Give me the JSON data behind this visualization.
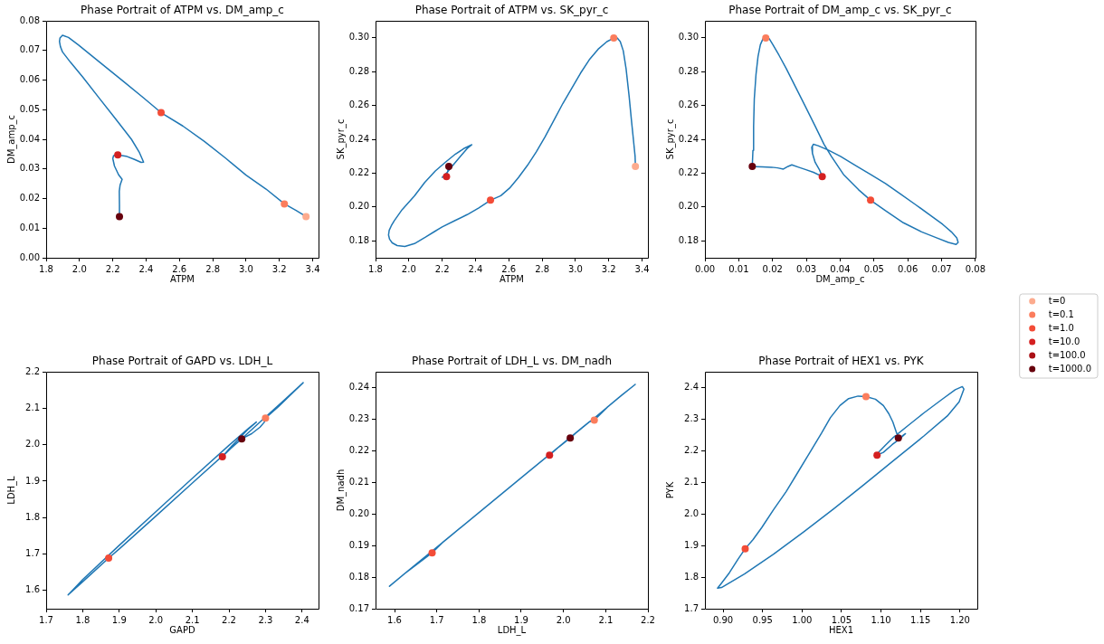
{
  "chart_data": [
    {
      "type": "line",
      "title": "Phase Portrait of ATPM vs. DM_amp_c",
      "xlabel": "ATPM",
      "ylabel": "DM_amp_c",
      "xlim": [
        1.8,
        3.435
      ],
      "ylim": [
        0,
        0.08
      ],
      "xticks": [
        1.8,
        {
          "value": 2,
          "label": "2.0"
        },
        2.2,
        2.4,
        2.6,
        2.8,
        {
          "value": 3,
          "label": "3.0"
        },
        3.2,
        3.4
      ],
      "yticks": [
        {
          "value": 0,
          "label": "0.00"
        },
        0.01,
        0.02,
        0.03,
        0.04,
        0.05,
        0.06,
        0.07,
        0.08
      ],
      "series": [
        {
          "color": "#1f77b4",
          "x": [
            3.36,
            3.3,
            3.23,
            3.12,
            3.0,
            2.88,
            2.75,
            2.62,
            2.49,
            2.38,
            2.263,
            2.117,
            1.995,
            1.934,
            1.898,
            1.883,
            1.88,
            1.886,
            1.898,
            1.946,
            2.02,
            2.117,
            2.215,
            2.312,
            2.36,
            2.385,
            2.37,
            2.33,
            2.28,
            2.23,
            2.205,
            2.2,
            2.21,
            2.235,
            2.256,
            2.244,
            2.239,
            2.24,
            2.24
          ],
          "values": [
            0.0139,
            0.016,
            0.0182,
            0.0232,
            0.0279,
            0.0335,
            0.0393,
            0.0445,
            0.049,
            0.0542,
            0.0596,
            0.0662,
            0.0718,
            0.0744,
            0.0751,
            0.0742,
            0.073,
            0.0712,
            0.0695,
            0.066,
            0.061,
            0.054,
            0.047,
            0.04,
            0.0355,
            0.0323,
            0.0322,
            0.0332,
            0.0343,
            0.0347,
            0.0345,
            0.0335,
            0.031,
            0.028,
            0.0265,
            0.0246,
            0.0225,
            0.018,
            0.0139
          ]
        },
        {
          "type": "scatter",
          "color": "#fcab8e",
          "marker": "circle",
          "x": [
            3.36
          ],
          "values": [
            0.0139
          ]
        },
        {
          "type": "scatter",
          "color": "#fb7d5d",
          "marker": "circle",
          "x": [
            3.23
          ],
          "values": [
            0.0182
          ]
        },
        {
          "type": "scatter",
          "color": "#f34c37",
          "marker": "circle",
          "x": [
            2.49
          ],
          "values": [
            0.049
          ]
        },
        {
          "type": "scatter",
          "color": "#d42021",
          "marker": "circle",
          "x": [
            2.23
          ],
          "values": [
            0.0347
          ]
        },
        {
          "type": "scatter",
          "color": "#67000d",
          "marker": "circle",
          "x": [
            2.24
          ],
          "values": [
            0.0139
          ]
        }
      ]
    },
    {
      "type": "line",
      "title": "Phase Portrait of ATPM vs. SK_pyr_c",
      "xlabel": "ATPM",
      "ylabel": "SK_pyr_c",
      "xlim": [
        1.8,
        3.435
      ],
      "ylim": [
        0.17,
        0.31
      ],
      "xticks": [
        1.8,
        {
          "value": 2,
          "label": "2.0"
        },
        2.2,
        2.4,
        2.6,
        2.8,
        {
          "value": 3,
          "label": "3.0"
        },
        3.2,
        3.4
      ],
      "yticks": [
        0.18,
        {
          "value": 0.2,
          "label": "0.20"
        },
        0.22,
        0.24,
        0.26,
        0.28,
        {
          "value": 0.3,
          "label": "0.30"
        }
      ],
      "series": [
        {
          "color": "#1f77b4",
          "x": [
            3.36,
            3.358,
            3.349,
            3.336,
            3.322,
            3.304,
            3.287,
            3.269,
            3.251,
            3.23,
            3.189,
            3.136,
            3.083,
            3.03,
            2.977,
            2.924,
            2.871,
            2.818,
            2.765,
            2.712,
            2.658,
            2.605,
            2.552,
            2.49,
            2.42,
            2.35,
            2.275,
            2.2,
            2.154,
            2.1,
            2.034,
            1.976,
            1.93,
            1.9,
            1.884,
            1.878,
            1.882,
            1.895,
            1.913,
            1.96,
            2.034,
            2.095,
            2.159,
            2.22,
            2.28,
            2.335,
            2.378,
            2.35,
            2.31,
            2.27,
            2.235,
            2.21,
            2.2,
            2.226,
            2.24
          ],
          "values": [
            0.224,
            0.2299,
            0.2388,
            0.2513,
            0.2656,
            0.2816,
            0.2923,
            0.2977,
            0.2998,
            0.2998,
            0.2977,
            0.2932,
            0.287,
            0.279,
            0.27,
            0.2611,
            0.2513,
            0.2415,
            0.2326,
            0.2246,
            0.2174,
            0.2112,
            0.2067,
            0.204,
            0.1995,
            0.1955,
            0.1919,
            0.1882,
            0.1855,
            0.1822,
            0.1784,
            0.1767,
            0.1772,
            0.1788,
            0.181,
            0.1835,
            0.1862,
            0.189,
            0.192,
            0.1985,
            0.2066,
            0.2145,
            0.2213,
            0.2265,
            0.2313,
            0.2348,
            0.2368,
            0.2345,
            0.23,
            0.2253,
            0.221,
            0.2183,
            0.2175,
            0.218,
            0.224
          ]
        },
        {
          "type": "scatter",
          "color": "#fcab8e",
          "marker": "circle",
          "x": [
            3.36
          ],
          "values": [
            0.224
          ]
        },
        {
          "type": "scatter",
          "color": "#fb7d5d",
          "marker": "circle",
          "x": [
            3.23
          ],
          "values": [
            0.2998
          ]
        },
        {
          "type": "scatter",
          "color": "#f34c37",
          "marker": "circle",
          "x": [
            2.49
          ],
          "values": [
            0.204
          ]
        },
        {
          "type": "scatter",
          "color": "#d42021",
          "marker": "circle",
          "x": [
            2.226
          ],
          "values": [
            0.218
          ]
        },
        {
          "type": "scatter",
          "color": "#67000d",
          "marker": "circle",
          "x": [
            2.24
          ],
          "values": [
            0.224
          ]
        }
      ]
    },
    {
      "type": "line",
      "title": "Phase Portrait of DM_amp_c vs. SK_pyr_c",
      "xlabel": "DM_amp_c",
      "ylabel": "SK_pyr_c",
      "xlim": [
        0,
        0.08
      ],
      "ylim": [
        0.17,
        0.31
      ],
      "xticks": [
        {
          "value": 0,
          "label": "0.00"
        },
        0.01,
        0.02,
        0.03,
        0.04,
        0.05,
        0.06,
        0.07,
        0.08
      ],
      "yticks": [
        0.18,
        {
          "value": 0.2,
          "label": "0.20"
        },
        0.22,
        0.24,
        0.26,
        0.28,
        {
          "value": 0.3,
          "label": "0.30"
        }
      ],
      "series": [
        {
          "color": "#1f77b4",
          "x": [
            0.014,
            0.0142,
            0.0144,
            0.0146,
            0.0151,
            0.0157,
            0.0164,
            0.0172,
            0.018,
            0.019,
            0.0201,
            0.0219,
            0.0241,
            0.0268,
            0.0295,
            0.0326,
            0.0352,
            0.0374,
            0.041,
            0.0454,
            0.049,
            0.0534,
            0.0587,
            0.0641,
            0.0685,
            0.072,
            0.0743,
            0.0749,
            0.0745,
            0.0729,
            0.0703,
            0.0667,
            0.0623,
            0.0579,
            0.0534,
            0.049,
            0.0445,
            0.0401,
            0.0366,
            0.0335,
            0.0321,
            0.0316,
            0.0318,
            0.0326,
            0.0339,
            0.0347,
            0.0321,
            0.0295,
            0.0277,
            0.0257,
            0.0246,
            0.0232,
            0.0215,
            0.0197,
            0.017,
            0.0148
          ],
          "values": [
            0.224,
            0.2335,
            0.2478,
            0.2638,
            0.2781,
            0.2888,
            0.2959,
            0.2995,
            0.2998,
            0.2995,
            0.2959,
            0.2897,
            0.2816,
            0.2709,
            0.2602,
            0.2478,
            0.2371,
            0.2299,
            0.2192,
            0.2103,
            0.204,
            0.1978,
            0.1907,
            0.1853,
            0.1818,
            0.1791,
            0.1779,
            0.1791,
            0.1818,
            0.1853,
            0.1898,
            0.1951,
            0.2014,
            0.2076,
            0.2139,
            0.2192,
            0.2246,
            0.2299,
            0.2335,
            0.2362,
            0.2371,
            0.2353,
            0.2317,
            0.2264,
            0.2219,
            0.218,
            0.2205,
            0.2223,
            0.2235,
            0.2249,
            0.224,
            0.2224,
            0.2231,
            0.2235,
            0.2237,
            0.2238
          ]
        },
        {
          "type": "scatter",
          "color": "#fb7d5d",
          "marker": "circle",
          "x": [
            0.018
          ],
          "values": [
            0.2998
          ]
        },
        {
          "type": "scatter",
          "color": "#f34c37",
          "marker": "circle",
          "x": [
            0.049
          ],
          "values": [
            0.204
          ]
        },
        {
          "type": "scatter",
          "color": "#d42021",
          "marker": "circle",
          "x": [
            0.0347
          ],
          "values": [
            0.218
          ]
        },
        {
          "type": "scatter",
          "color": "#67000d",
          "marker": "circle",
          "x": [
            0.014
          ],
          "values": [
            0.224
          ]
        }
      ]
    },
    {
      "type": "line",
      "title": "Phase Portrait of GAPD vs. LDH_L",
      "xlabel": "GAPD",
      "ylabel": "LDH_L",
      "xlim": [
        1.7,
        2.445
      ],
      "ylim": [
        1.55,
        2.2
      ],
      "xticks": [
        1.7,
        1.8,
        1.9,
        {
          "value": 2,
          "label": "2.0"
        },
        2.1,
        2.2,
        2.3,
        2.4
      ],
      "yticks": [
        1.6,
        1.7,
        1.8,
        1.9,
        {
          "value": 2,
          "label": "2.0"
        },
        2.1,
        2.2
      ],
      "series": [
        {
          "color": "#1f77b4",
          "x": [
            2.235,
            2.262,
            2.285,
            2.297,
            2.3,
            2.335,
            2.37,
            2.403,
            2.35,
            2.3,
            2.25,
            2.2,
            2.1,
            2.0,
            1.9,
            1.871,
            1.8,
            1.76,
            1.8,
            1.9,
            2.0,
            2.1,
            2.2,
            2.255,
            2.275,
            2.25,
            2.2,
            2.182,
            2.205,
            2.225
          ],
          "values": [
            2.016,
            2.03,
            2.048,
            2.062,
            2.073,
            2.104,
            2.138,
            2.17,
            2.121,
            2.076,
            2.03,
            1.985,
            1.895,
            1.804,
            1.714,
            1.689,
            1.624,
            1.588,
            1.63,
            1.724,
            1.816,
            1.908,
            1.998,
            2.046,
            2.062,
            2.04,
            1.988,
            1.967,
            1.99,
            2.007
          ]
        },
        {
          "type": "scatter",
          "color": "#fb7d5d",
          "marker": "circle",
          "x": [
            2.3
          ],
          "values": [
            2.073
          ]
        },
        {
          "type": "scatter",
          "color": "#f34c37",
          "marker": "circle",
          "x": [
            1.871
          ],
          "values": [
            1.689
          ]
        },
        {
          "type": "scatter",
          "color": "#d42021",
          "marker": "circle",
          "x": [
            2.182
          ],
          "values": [
            1.967
          ]
        },
        {
          "type": "scatter",
          "color": "#67000d",
          "marker": "circle",
          "x": [
            2.235
          ],
          "values": [
            2.016
          ]
        }
      ]
    },
    {
      "type": "line",
      "title": "Phase Portrait of LDH_L vs. DM_nadh",
      "xlabel": "LDH_L",
      "ylabel": "DM_nadh",
      "xlim": [
        1.555,
        2.2
      ],
      "ylim": [
        0.17,
        0.245
      ],
      "xticks": [
        1.6,
        1.7,
        1.8,
        1.9,
        {
          "value": 2,
          "label": "2.0"
        },
        2.1,
        2.2
      ],
      "yticks": [
        0.17,
        0.18,
        0.19,
        {
          "value": 0.2,
          "label": "0.20"
        },
        0.21,
        0.22,
        0.23,
        0.24
      ],
      "series": [
        {
          "color": "#1f77b4",
          "x": [
            2.016,
            2.03,
            2.048,
            2.062,
            2.073,
            2.104,
            2.138,
            2.17,
            2.121,
            2.076,
            2.03,
            1.985,
            1.895,
            1.804,
            1.714,
            1.689,
            1.624,
            1.588,
            1.63,
            1.724,
            1.816,
            1.908,
            1.998,
            2.046,
            2.062,
            2.04,
            1.988,
            1.967,
            1.99,
            2.008
          ],
          "values": [
            0.224,
            0.2257,
            0.2277,
            0.2292,
            0.2297,
            0.2338,
            0.2376,
            0.241,
            0.2357,
            0.2307,
            0.2257,
            0.2208,
            0.2109,
            0.2009,
            0.191,
            0.1877,
            0.1811,
            0.1771,
            0.1818,
            0.1921,
            0.2022,
            0.2123,
            0.2222,
            0.2275,
            0.2292,
            0.2268,
            0.2211,
            0.2186,
            0.2213,
            0.2232
          ]
        },
        {
          "type": "scatter",
          "color": "#fb7d5d",
          "marker": "circle",
          "x": [
            2.073
          ],
          "values": [
            0.2297
          ]
        },
        {
          "type": "scatter",
          "color": "#f34c37",
          "marker": "circle",
          "x": [
            1.689
          ],
          "values": [
            0.1877
          ]
        },
        {
          "type": "scatter",
          "color": "#d42021",
          "marker": "circle",
          "x": [
            1.967
          ],
          "values": [
            0.2186
          ]
        },
        {
          "type": "scatter",
          "color": "#67000d",
          "marker": "circle",
          "x": [
            2.016
          ],
          "values": [
            0.224
          ]
        }
      ]
    },
    {
      "type": "line",
      "title": "Phase Portrait of HEX1 vs. PYK",
      "xlabel": "HEX1",
      "ylabel": "PYK",
      "xlim": [
        0.877,
        1.222
      ],
      "ylim": [
        1.7,
        2.45
      ],
      "legend": "top right",
      "xticks": [
        {
          "value": 0.9,
          "label": "0.90"
        },
        0.95,
        {
          "value": 1,
          "label": "1.00"
        },
        1.05,
        {
          "value": 1.1,
          "label": "1.10"
        },
        1.15,
        {
          "value": 1.2,
          "label": "1.20"
        }
      ],
      "yticks": [
        1.7,
        1.8,
        1.9,
        {
          "value": 2,
          "label": "2.0"
        },
        2.1,
        2.2,
        2.3,
        2.4
      ],
      "series": [
        {
          "color": "#1f77b4",
          "x": [
            1.122,
            1.119,
            1.115,
            1.11,
            1.103,
            1.093,
            1.081,
            1.071,
            1.059,
            1.048,
            1.036,
            1.025,
            1.01,
            0.995,
            0.98,
            0.964,
            0.949,
            0.938,
            0.928,
            0.919,
            0.908,
            0.898,
            0.893,
            0.898,
            0.927,
            0.964,
            1.002,
            1.04,
            1.078,
            1.116,
            1.154,
            1.184,
            1.199,
            1.205,
            1.203,
            1.194,
            1.177,
            1.154,
            1.135,
            1.116,
            1.105,
            1.097,
            1.095,
            1.103,
            1.114,
            1.124,
            1.131,
            1.127
          ],
          "values": [
            2.24,
            2.262,
            2.291,
            2.317,
            2.343,
            2.363,
            2.371,
            2.373,
            2.365,
            2.343,
            2.305,
            2.257,
            2.195,
            2.133,
            2.071,
            2.014,
            1.957,
            1.919,
            1.89,
            1.857,
            1.814,
            1.781,
            1.765,
            1.767,
            1.81,
            1.873,
            1.943,
            2.016,
            2.092,
            2.169,
            2.246,
            2.31,
            2.355,
            2.395,
            2.403,
            2.393,
            2.362,
            2.319,
            2.281,
            2.243,
            2.216,
            2.195,
            2.186,
            2.195,
            2.219,
            2.238,
            2.254,
            2.247
          ]
        },
        {
          "type": "scatter",
          "name": "t=0",
          "color": "#fcab8e",
          "marker": "circle",
          "x": [
            null
          ],
          "values": [
            null
          ]
        },
        {
          "type": "scatter",
          "name": "t=0.1",
          "color": "#fb7d5d",
          "marker": "circle",
          "x": [
            1.081
          ],
          "values": [
            2.371
          ]
        },
        {
          "type": "scatter",
          "name": "t=1.0",
          "color": "#f34c37",
          "marker": "circle",
          "x": [
            0.928
          ],
          "values": [
            1.89
          ]
        },
        {
          "type": "scatter",
          "name": "t=10.0",
          "color": "#d42021",
          "marker": "circle",
          "x": [
            1.095
          ],
          "values": [
            2.186
          ]
        },
        {
          "type": "scatter",
          "name": "t=100.0",
          "color": "#aa1016",
          "marker": "circle",
          "x": [
            null
          ],
          "values": [
            null
          ]
        },
        {
          "type": "scatter",
          "name": "t=1000.0",
          "color": "#67000d",
          "marker": "circle",
          "x": [
            1.122
          ],
          "values": [
            2.24
          ]
        }
      ]
    }
  ]
}
